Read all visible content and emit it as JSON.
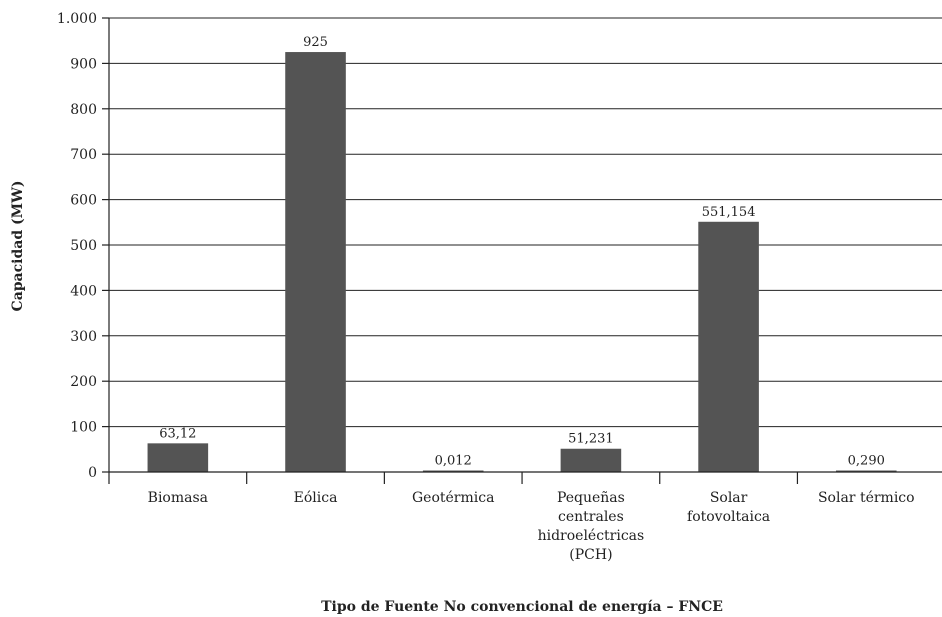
{
  "chart_data": {
    "type": "bar",
    "categories": [
      [
        "Biomasa"
      ],
      [
        "Eólica"
      ],
      [
        "Geotérmica"
      ],
      [
        "Pequeñas",
        "centrales",
        "hidroeléctricas",
        "(PCH)"
      ],
      [
        "Solar",
        "fotovoltaica"
      ],
      [
        "Solar térmico"
      ]
    ],
    "values": [
      63.12,
      925,
      0.012,
      51.231,
      551.154,
      0.29
    ],
    "value_labels": [
      "63,12",
      "925",
      "0,012",
      "51,231",
      "551,154",
      "0,290"
    ],
    "title": "",
    "xlabel": "Tipo de Fuente No convencional de energía – FNCE",
    "ylabel": "Capacidad (MW)",
    "ylim": [
      0,
      1000
    ],
    "yticks": [
      0,
      100,
      200,
      300,
      400,
      500,
      600,
      700,
      800,
      900,
      1000
    ],
    "ytick_labels": [
      "0",
      "100",
      "200",
      "300",
      "400",
      "500",
      "600",
      "700",
      "800",
      "900",
      "1.000"
    ],
    "grid": true,
    "legend": "none",
    "bar_color": "#545454"
  }
}
